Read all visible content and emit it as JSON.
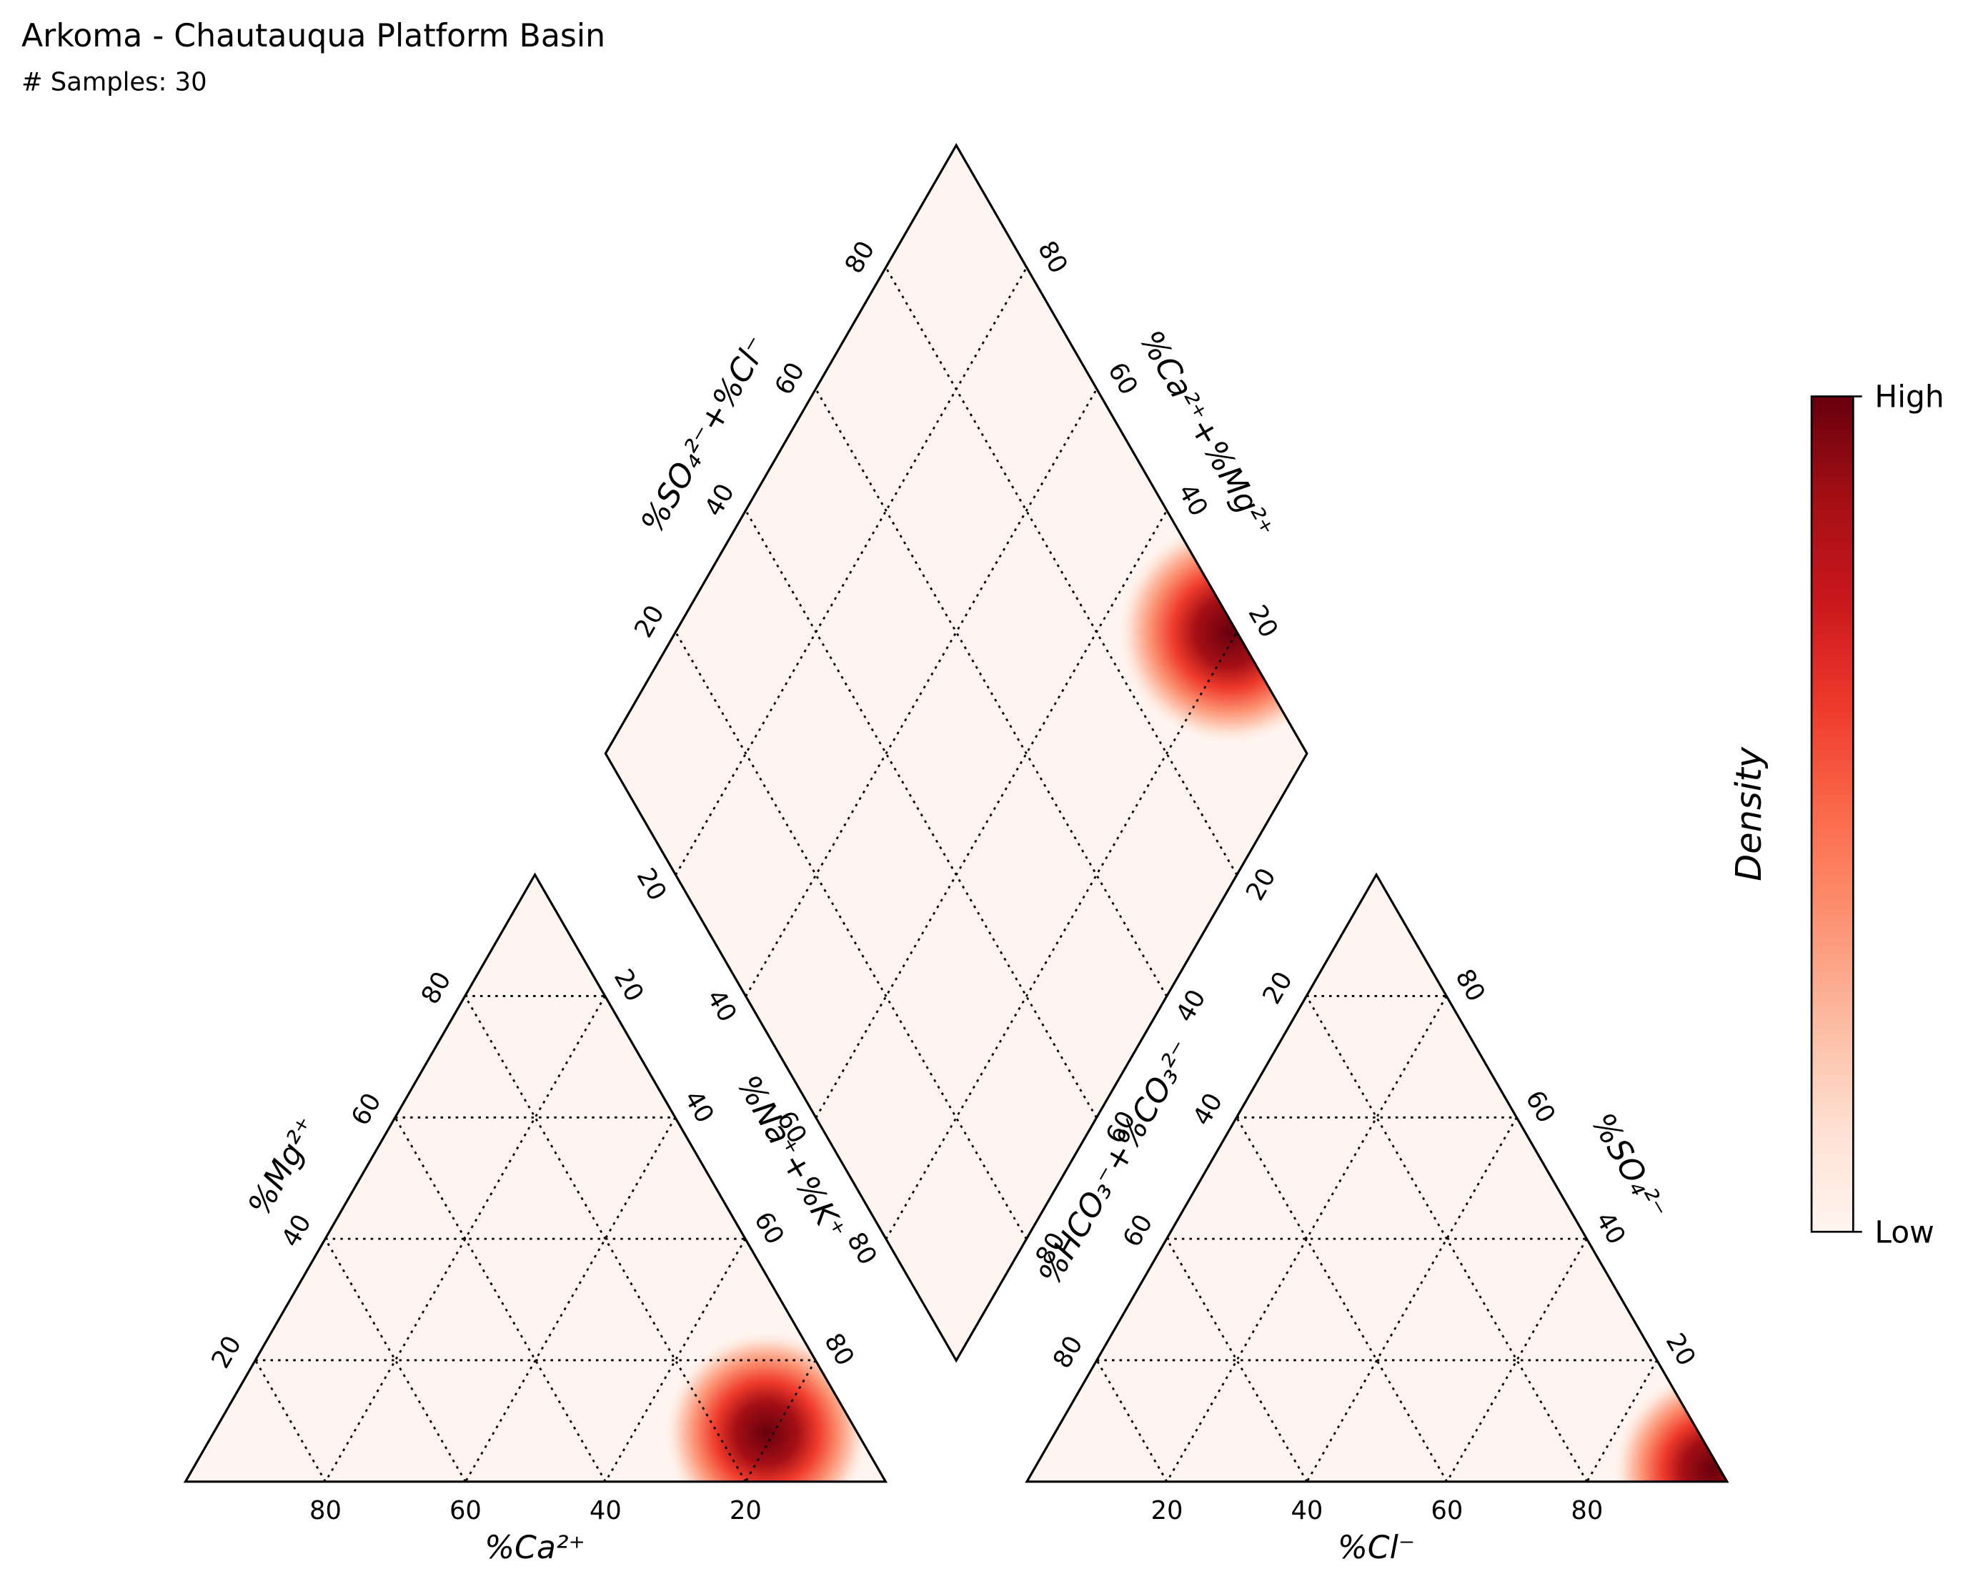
{
  "chart_data": {
    "type": "piper",
    "title": "Arkoma - Chautauqua Platform Basin",
    "subtitle": "# Samples: 30",
    "title_color": "#0000ff",
    "grid": true,
    "cation": {
      "bottom_label": "%Ca²⁺",
      "left_label": "%Mg²⁺",
      "right_label": "%Na⁺+%K⁺",
      "ticks": [
        20,
        40,
        60,
        80
      ]
    },
    "anion": {
      "bottom_label": "%Cl⁻",
      "left_label": "%HCO₃⁻+%CO₃²⁻",
      "right_label": "%SO₄²⁻",
      "ticks": [
        20,
        40,
        60,
        80
      ]
    },
    "diamond": {
      "upper_left_label": "%SO₄²⁻+%Cl⁻",
      "upper_right_label": "%Ca²⁺+%Mg²⁺",
      "ticks": [
        20,
        40,
        60,
        80
      ]
    },
    "density_peaks": {
      "cation": {
        "ca": 13,
        "mg": 8,
        "na_k": 79
      },
      "anion": {
        "hco3": 1,
        "so4": 2,
        "cl": 97
      }
    },
    "colorbar": {
      "label": "Density",
      "high_label": "High",
      "low_label": "Low",
      "colors": [
        "#fff5f0",
        "#fee0d2",
        "#fcbba1",
        "#fc9272",
        "#fb6a4a",
        "#ef3b2c",
        "#cb181d",
        "#a50f15",
        "#67000d"
      ]
    }
  }
}
